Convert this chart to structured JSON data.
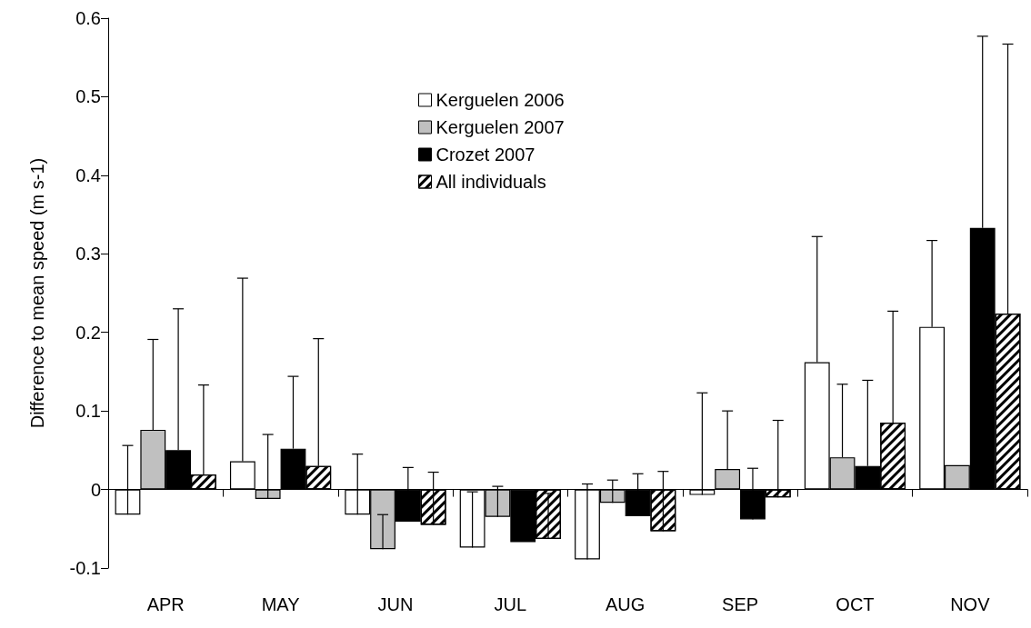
{
  "chart_data": {
    "type": "bar",
    "ylabel": "Difference to mean speed (m s-1)",
    "categories": [
      "APR",
      "MAY",
      "JUN",
      "JUL",
      "AUG",
      "SEP",
      "OCT",
      "NOV"
    ],
    "series": [
      {
        "name": "Kerguelen 2006",
        "color": "#ffffff",
        "values": [
          -0.032,
          0.036,
          -0.032,
          -0.074,
          -0.089,
          -0.007,
          0.162,
          0.207
        ],
        "errors": [
          [
            -0.032,
            0.056
          ],
          [
            0.036,
            0.269
          ],
          [
            -0.032,
            0.045
          ],
          [
            -0.074,
            -0.003
          ],
          [
            -0.089,
            0.007
          ],
          [
            -0.007,
            0.123
          ],
          [
            0.162,
            0.322
          ],
          [
            0.207,
            0.317
          ]
        ]
      },
      {
        "name": "Kerguelen 2007",
        "color": "#c0c0c0",
        "values": [
          0.076,
          -0.012,
          -0.076,
          -0.035,
          -0.017,
          0.026,
          0.041,
          0.031
        ],
        "errors": [
          [
            0.076,
            0.191
          ],
          [
            -0.012,
            0.07
          ],
          [
            -0.076,
            -0.032
          ],
          [
            -0.035,
            0.004
          ],
          [
            -0.017,
            0.012
          ],
          [
            0.026,
            0.1
          ],
          [
            0.041,
            0.134
          ],
          null
        ]
      },
      {
        "name": "Crozet 2007",
        "color": "#000000",
        "values": [
          0.05,
          0.052,
          -0.041,
          -0.067,
          -0.034,
          -0.038,
          0.03,
          0.333
        ],
        "errors": [
          [
            0.05,
            0.23
          ],
          [
            0.052,
            0.144
          ],
          [
            -0.041,
            0.028
          ],
          null,
          [
            -0.034,
            0.02
          ],
          [
            -0.038,
            0.027
          ],
          [
            0.03,
            0.139
          ],
          [
            0.333,
            0.577
          ]
        ]
      },
      {
        "name": "All individuals",
        "color": "#ffffff",
        "values": [
          0.019,
          0.03,
          -0.045,
          -0.063,
          -0.053,
          -0.01,
          0.085,
          0.224
        ],
        "errors": [
          [
            0.019,
            0.133
          ],
          [
            0.03,
            0.192
          ],
          [
            -0.045,
            0.022
          ],
          [
            -0.063,
            -0.005
          ],
          [
            -0.053,
            0.023
          ],
          [
            -0.01,
            0.088
          ],
          [
            0.085,
            0.227
          ],
          [
            0.224,
            0.567
          ]
        ]
      }
    ],
    "ylim": [
      -0.1,
      0.6
    ],
    "yticks": [
      -0.1,
      0,
      0.1,
      0.2,
      0.3,
      0.4,
      0.5,
      0.6
    ],
    "legend": "top"
  }
}
